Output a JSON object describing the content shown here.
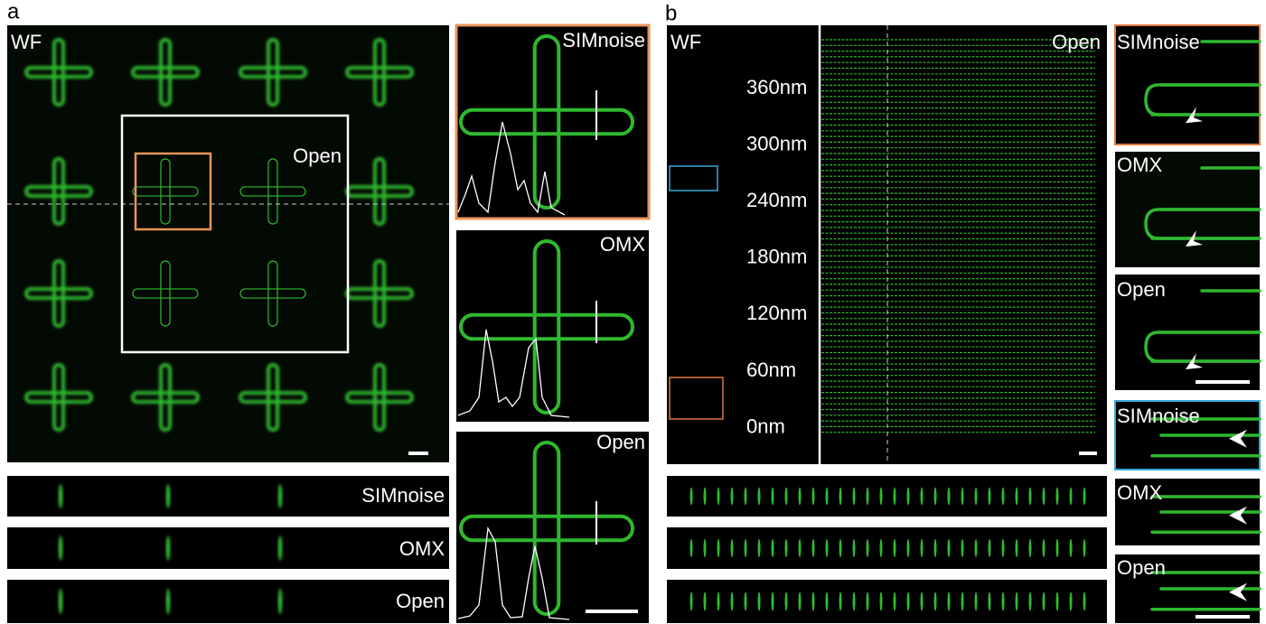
{
  "panel_a": {
    "label": "a",
    "main": {
      "left": "WF",
      "right": "Open"
    },
    "insets": [
      "SIMnoise",
      "OMX",
      "Open"
    ],
    "xz": [
      "SIMnoise",
      "OMX",
      "Open"
    ]
  },
  "panel_b": {
    "label": "b",
    "main": {
      "left": "WF",
      "right": "Open"
    },
    "spacings": [
      "360nm",
      "300nm",
      "240nm",
      "180nm",
      "120nm",
      "60nm",
      "0nm"
    ],
    "insets": [
      "SIMnoise",
      "OMX",
      "Open",
      "SIMnoise",
      "OMX",
      "Open"
    ]
  }
}
